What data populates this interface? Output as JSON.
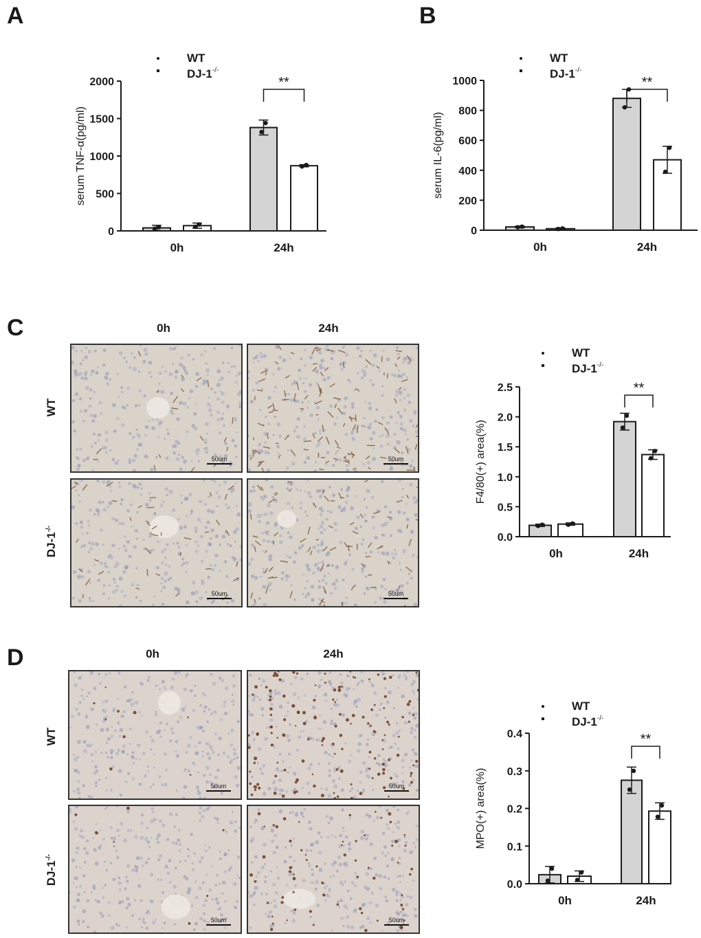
{
  "panels": {
    "A": "A",
    "B": "B",
    "C": "C",
    "D": "D"
  },
  "legend": {
    "wt": "WT",
    "ko": "DJ-1",
    "ko_sup": "-/-"
  },
  "micrographs": {
    "time_labels": [
      "0h",
      "24h"
    ],
    "row_labels": [
      "WT",
      "DJ-1"
    ],
    "row_label_sup": "-/-",
    "scale_label": "50um"
  },
  "colors": {
    "wt_bar": "#d4d4d4",
    "ko_bar": "#ffffff",
    "stroke": "#1a1a1a",
    "c_tissue": "#d9d3c9",
    "c_stain": "#7a4a28",
    "d_tissue": "#dcd4cc",
    "d_stain": "#6b3a22"
  },
  "chart_data": [
    {
      "id": "A",
      "type": "bar",
      "ylabel": "serum TNF-α(pg/ml)",
      "ylim": [
        0,
        2000
      ],
      "yticks": [
        0,
        500,
        1000,
        1500,
        2000
      ],
      "categories": [
        "0h",
        "24h"
      ],
      "series": [
        {
          "name": "WT",
          "values": [
            40,
            1380
          ],
          "errors": [
            35,
            100
          ],
          "points": [
            [
              30,
              50
            ],
            [
              1320,
              1440
            ]
          ]
        },
        {
          "name": "DJ-1-/-",
          "values": [
            70,
            870
          ],
          "errors": [
            35,
            15
          ],
          "points": [
            [
              55,
              85
            ],
            [
              860,
              880
            ]
          ]
        }
      ],
      "significance": "**",
      "legend": "top-center"
    },
    {
      "id": "B",
      "type": "bar",
      "ylabel": "serum IL-6(pg/ml)",
      "ylim": [
        0,
        1000
      ],
      "yticks": [
        0,
        200,
        400,
        600,
        800,
        1000
      ],
      "categories": [
        "0h",
        "24h"
      ],
      "series": [
        {
          "name": "WT",
          "values": [
            22,
            880
          ],
          "errors": [
            6,
            60
          ],
          "points": [
            [
              20,
              24
            ],
            [
              820,
              940
            ]
          ]
        },
        {
          "name": "DJ-1-/-",
          "values": [
            10,
            470
          ],
          "errors": [
            6,
            90
          ],
          "points": [
            [
              8,
              12
            ],
            [
              390,
              550
            ]
          ]
        }
      ],
      "significance": "**",
      "legend": "top-center"
    },
    {
      "id": "C",
      "type": "bar",
      "ylabel": "F4/80(+) area(%)",
      "ylim": [
        0,
        2.5
      ],
      "yticks": [
        "0.0",
        "0.5",
        "1.0",
        "1.5",
        "2.0",
        "2.5"
      ],
      "categories": [
        "0h",
        "24h"
      ],
      "series": [
        {
          "name": "WT",
          "values": [
            0.19,
            1.92
          ],
          "errors": [
            0.02,
            0.14
          ],
          "points": [
            [
              0.18,
              0.2
            ],
            [
              1.82,
              2.02
            ]
          ]
        },
        {
          "name": "DJ-1-/-",
          "values": [
            0.21,
            1.37
          ],
          "errors": [
            0.02,
            0.08
          ],
          "points": [
            [
              0.2,
              0.22
            ],
            [
              1.31,
              1.43
            ]
          ]
        }
      ],
      "significance": "**",
      "legend": "top-center"
    },
    {
      "id": "D",
      "type": "bar",
      "ylabel": "MPO(+) area(%)",
      "ylim": [
        0,
        0.4
      ],
      "yticks": [
        "0.0",
        "0.1",
        "0.2",
        "0.3",
        "0.4"
      ],
      "categories": [
        "0h",
        "24h"
      ],
      "series": [
        {
          "name": "WT",
          "values": [
            0.024,
            0.275
          ],
          "errors": [
            0.022,
            0.035
          ],
          "points": [
            [
              0.008,
              0.04
            ],
            [
              0.25,
              0.3
            ]
          ]
        },
        {
          "name": "DJ-1-/-",
          "values": [
            0.02,
            0.193
          ],
          "errors": [
            0.014,
            0.022
          ],
          "points": [
            [
              0.01,
              0.03
            ],
            [
              0.178,
              0.208
            ]
          ]
        }
      ],
      "significance": "**",
      "legend": "top-center"
    }
  ]
}
